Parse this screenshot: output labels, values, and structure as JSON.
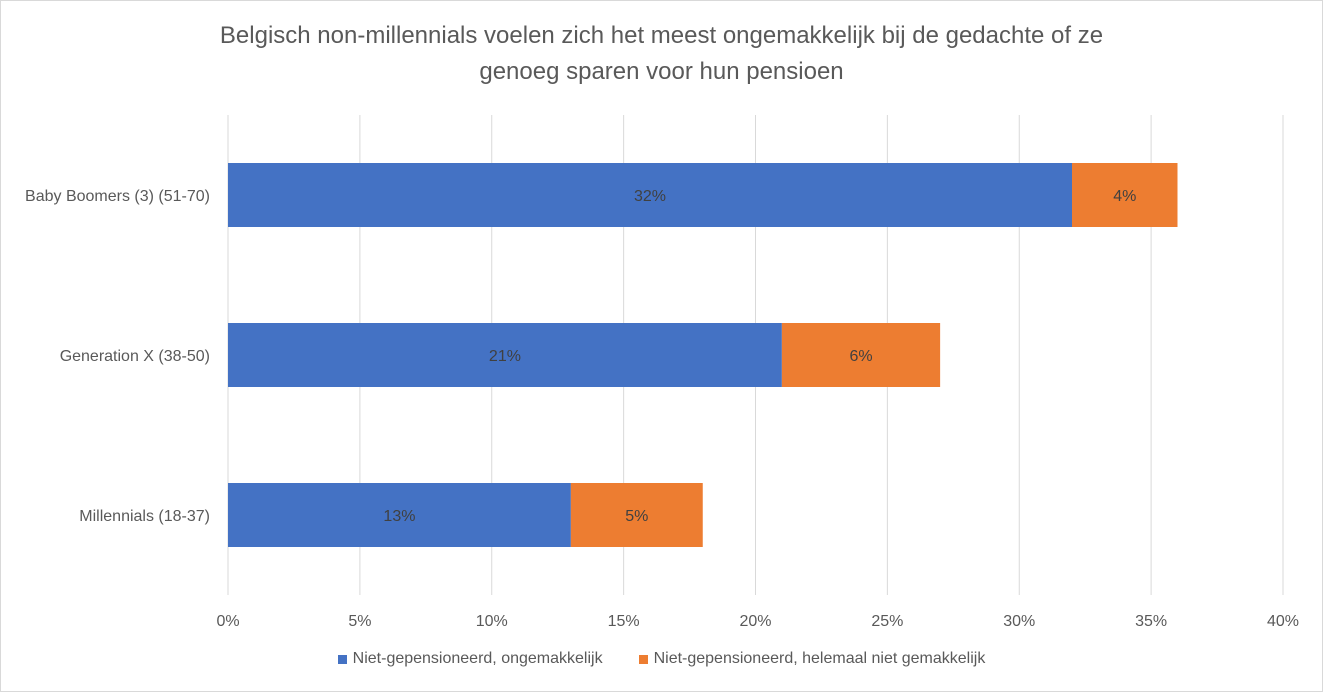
{
  "chart_data": {
    "type": "bar",
    "orientation": "horizontal",
    "stacked": true,
    "title_lines": [
      "Belgisch non-millennials voelen zich het meest ongemakkelijk bij de gedachte of ze",
      "genoeg sparen voor hun pensioen"
    ],
    "categories": [
      "Baby Boomers (3) (51-70)",
      "Generation X (38-50)",
      "Millennials (18-37)"
    ],
    "series": [
      {
        "name": "Niet-gepensioneerd, ongemakkelijk",
        "color": "#4472c4",
        "values": [
          32,
          21,
          13
        ],
        "labels": [
          "32%",
          "21%",
          "13%"
        ]
      },
      {
        "name": "Niet-gepensioneerd, helemaal niet gemakkelijk",
        "color": "#ed7d31",
        "values": [
          4,
          6,
          5
        ],
        "labels": [
          "4%",
          "6%",
          "5%"
        ]
      }
    ],
    "xlim": [
      0,
      40
    ],
    "xticks": [
      0,
      5,
      10,
      15,
      20,
      25,
      30,
      35,
      40
    ],
    "xtick_labels": [
      "0%",
      "5%",
      "10%",
      "15%",
      "20%",
      "25%",
      "30%",
      "35%",
      "40%"
    ],
    "grid": "vertical",
    "legend_position": "bottom"
  }
}
